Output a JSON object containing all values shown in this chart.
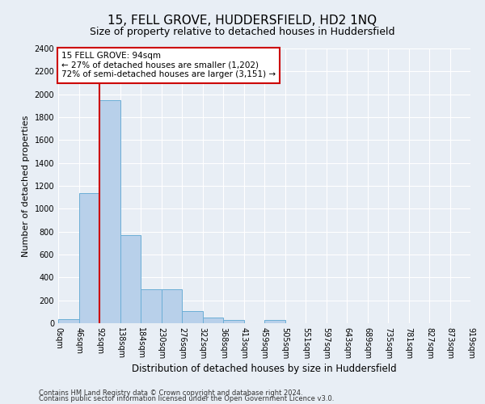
{
  "title": "15, FELL GROVE, HUDDERSFIELD, HD2 1NQ",
  "subtitle": "Size of property relative to detached houses in Huddersfield",
  "xlabel": "Distribution of detached houses by size in Huddersfield",
  "ylabel": "Number of detached properties",
  "footnote1": "Contains HM Land Registry data © Crown copyright and database right 2024.",
  "footnote2": "Contains public sector information licensed under the Open Government Licence v3.0.",
  "bin_labels": [
    "0sqm",
    "46sqm",
    "92sqm",
    "138sqm",
    "184sqm",
    "230sqm",
    "276sqm",
    "322sqm",
    "368sqm",
    "413sqm",
    "459sqm",
    "505sqm",
    "551sqm",
    "597sqm",
    "643sqm",
    "689sqm",
    "735sqm",
    "781sqm",
    "827sqm",
    "873sqm",
    "919sqm"
  ],
  "bar_values": [
    35,
    1140,
    1950,
    770,
    300,
    300,
    105,
    50,
    30,
    0,
    25,
    0,
    0,
    0,
    0,
    0,
    0,
    0,
    0,
    0
  ],
  "bar_color": "#b8d0ea",
  "bar_edge_color": "#6baed6",
  "vline_color": "#cc0000",
  "vline_x": 2,
  "annotation_text": "15 FELL GROVE: 94sqm\n← 27% of detached houses are smaller (1,202)\n72% of semi-detached houses are larger (3,151) →",
  "annotation_box_color": "#ffffff",
  "annotation_box_edge_color": "#cc0000",
  "ylim": [
    0,
    2400
  ],
  "yticks": [
    0,
    200,
    400,
    600,
    800,
    1000,
    1200,
    1400,
    1600,
    1800,
    2000,
    2200,
    2400
  ],
  "background_color": "#e8eef5",
  "plot_bg_color": "#e8eef5",
  "grid_color": "#ffffff",
  "title_fontsize": 11,
  "subtitle_fontsize": 9,
  "axis_label_fontsize": 8.5,
  "ylabel_fontsize": 8,
  "tick_fontsize": 7,
  "annotation_fontsize": 7.5,
  "footnote_fontsize": 6
}
